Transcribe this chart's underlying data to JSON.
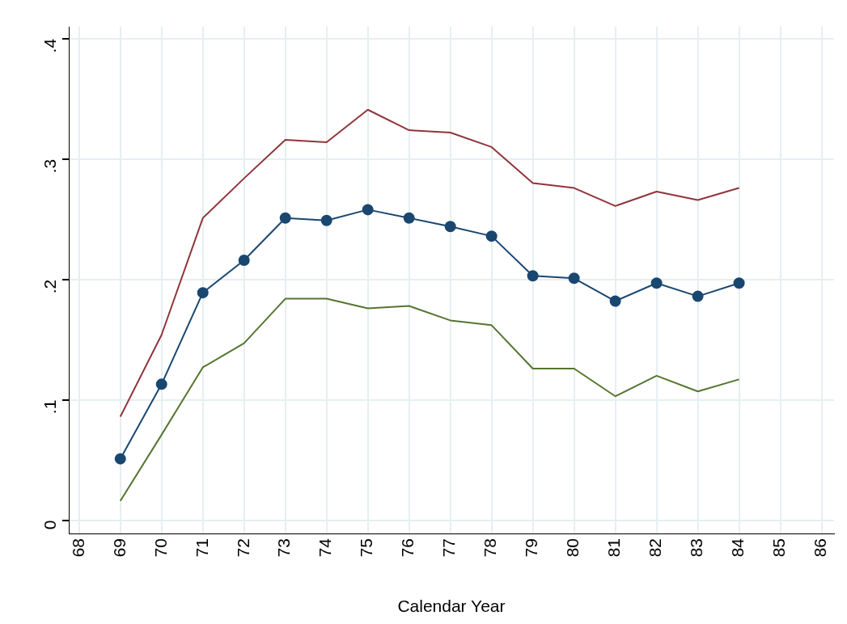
{
  "chart_data": {
    "type": "line",
    "xlabel": "Calendar Year",
    "x": [
      69,
      70,
      71,
      72,
      73,
      74,
      75,
      76,
      77,
      78,
      79,
      80,
      81,
      82,
      83,
      84
    ],
    "series": [
      {
        "color": "#90353b",
        "marker": "none",
        "values": [
          0.086,
          0.154,
          0.251,
          0.284,
          0.316,
          0.314,
          0.341,
          0.324,
          0.322,
          0.31,
          0.28,
          0.276,
          0.261,
          0.273,
          0.266,
          0.276
        ]
      },
      {
        "color": "#1a476f",
        "marker": "circle",
        "values": [
          0.051,
          0.113,
          0.189,
          0.216,
          0.251,
          0.249,
          0.258,
          0.251,
          0.244,
          0.236,
          0.203,
          0.201,
          0.182,
          0.197,
          0.186,
          0.197
        ]
      },
      {
        "color": "#55752f",
        "marker": "none",
        "values": [
          0.016,
          0.071,
          0.127,
          0.147,
          0.184,
          0.184,
          0.176,
          0.178,
          0.166,
          0.162,
          0.126,
          0.126,
          0.103,
          0.12,
          0.107,
          0.117
        ]
      }
    ],
    "xlim": [
      67.75,
      86.3
    ],
    "xticks": [
      68,
      69,
      70,
      71,
      72,
      73,
      74,
      75,
      76,
      77,
      78,
      79,
      80,
      81,
      82,
      83,
      84,
      85,
      86
    ],
    "ylim": [
      -0.011,
      0.41
    ],
    "yticks": [
      0,
      {
        "value": 0.1,
        "label": ".1"
      },
      {
        "value": 0.2,
        "label": ".2"
      },
      {
        "value": 0.3,
        "label": ".3"
      },
      {
        "value": 0.4,
        "label": ".4"
      }
    ],
    "grid": true,
    "legend": false
  }
}
